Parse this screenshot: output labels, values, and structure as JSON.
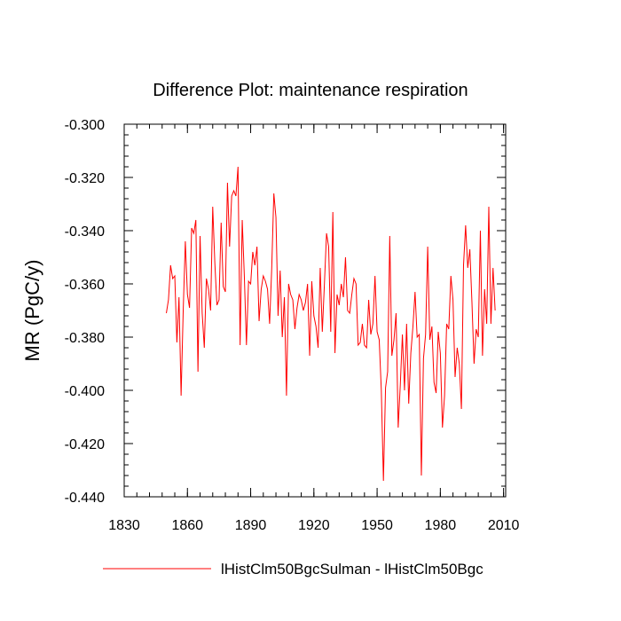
{
  "chart_data": {
    "type": "line",
    "title": "Difference Plot: maintenance respiration",
    "xlabel": "",
    "ylabel": "MR  (PgC/y)",
    "xlim": [
      1830,
      2011
    ],
    "ylim": [
      -0.44,
      -0.3
    ],
    "xticks": [
      1830,
      1860,
      1890,
      1920,
      1950,
      1980,
      2010
    ],
    "xtick_labels": [
      "1830",
      "1860",
      "1890",
      "1920",
      "1950",
      "1980",
      "2010"
    ],
    "yticks": [
      -0.3,
      -0.32,
      -0.34,
      -0.36,
      -0.38,
      -0.4,
      -0.42,
      -0.44
    ],
    "ytick_labels": [
      "-0.300",
      "-0.320",
      "-0.340",
      "-0.360",
      "-0.380",
      "-0.400",
      "-0.420",
      "-0.440"
    ],
    "x_minor_step": 6,
    "y_minor_step": 0.004,
    "grid": false,
    "legend_position": "bottom",
    "series": [
      {
        "name": "lHistClm50BgcSulman - lHistClm50Bgc",
        "color": "#ff0000",
        "x_start": 1850,
        "x_step": 1,
        "values": [
          -0.371,
          -0.366,
          -0.353,
          -0.358,
          -0.357,
          -0.382,
          -0.365,
          -0.402,
          -0.37,
          -0.344,
          -0.364,
          -0.369,
          -0.339,
          -0.341,
          -0.336,
          -0.393,
          -0.342,
          -0.371,
          -0.384,
          -0.358,
          -0.362,
          -0.37,
          -0.331,
          -0.352,
          -0.368,
          -0.366,
          -0.337,
          -0.361,
          -0.363,
          -0.322,
          -0.346,
          -0.327,
          -0.325,
          -0.327,
          -0.316,
          -0.383,
          -0.336,
          -0.357,
          -0.383,
          -0.359,
          -0.36,
          -0.348,
          -0.353,
          -0.346,
          -0.374,
          -0.362,
          -0.357,
          -0.359,
          -0.362,
          -0.375,
          -0.354,
          -0.326,
          -0.335,
          -0.372,
          -0.355,
          -0.38,
          -0.365,
          -0.402,
          -0.36,
          -0.364,
          -0.366,
          -0.377,
          -0.369,
          -0.364,
          -0.366,
          -0.37,
          -0.367,
          -0.36,
          -0.387,
          -0.359,
          -0.372,
          -0.376,
          -0.384,
          -0.354,
          -0.378,
          -0.36,
          -0.341,
          -0.346,
          -0.378,
          -0.333,
          -0.386,
          -0.364,
          -0.368,
          -0.36,
          -0.365,
          -0.35,
          -0.37,
          -0.371,
          -0.364,
          -0.358,
          -0.36,
          -0.383,
          -0.382,
          -0.375,
          -0.383,
          -0.384,
          -0.366,
          -0.379,
          -0.375,
          -0.357,
          -0.378,
          -0.381,
          -0.4,
          -0.434,
          -0.399,
          -0.393,
          -0.342,
          -0.387,
          -0.381,
          -0.371,
          -0.414,
          -0.398,
          -0.379,
          -0.4,
          -0.375,
          -0.405,
          -0.386,
          -0.376,
          -0.363,
          -0.38,
          -0.379,
          -0.432,
          -0.388,
          -0.379,
          -0.346,
          -0.381,
          -0.376,
          -0.397,
          -0.401,
          -0.378,
          -0.386,
          -0.414,
          -0.402,
          -0.375,
          -0.377,
          -0.357,
          -0.366,
          -0.395,
          -0.384,
          -0.39,
          -0.407,
          -0.353,
          -0.338,
          -0.354,
          -0.347,
          -0.367,
          -0.39,
          -0.377,
          -0.38,
          -0.34,
          -0.387,
          -0.362,
          -0.375,
          -0.331,
          -0.375,
          -0.354,
          -0.37
        ]
      }
    ]
  }
}
